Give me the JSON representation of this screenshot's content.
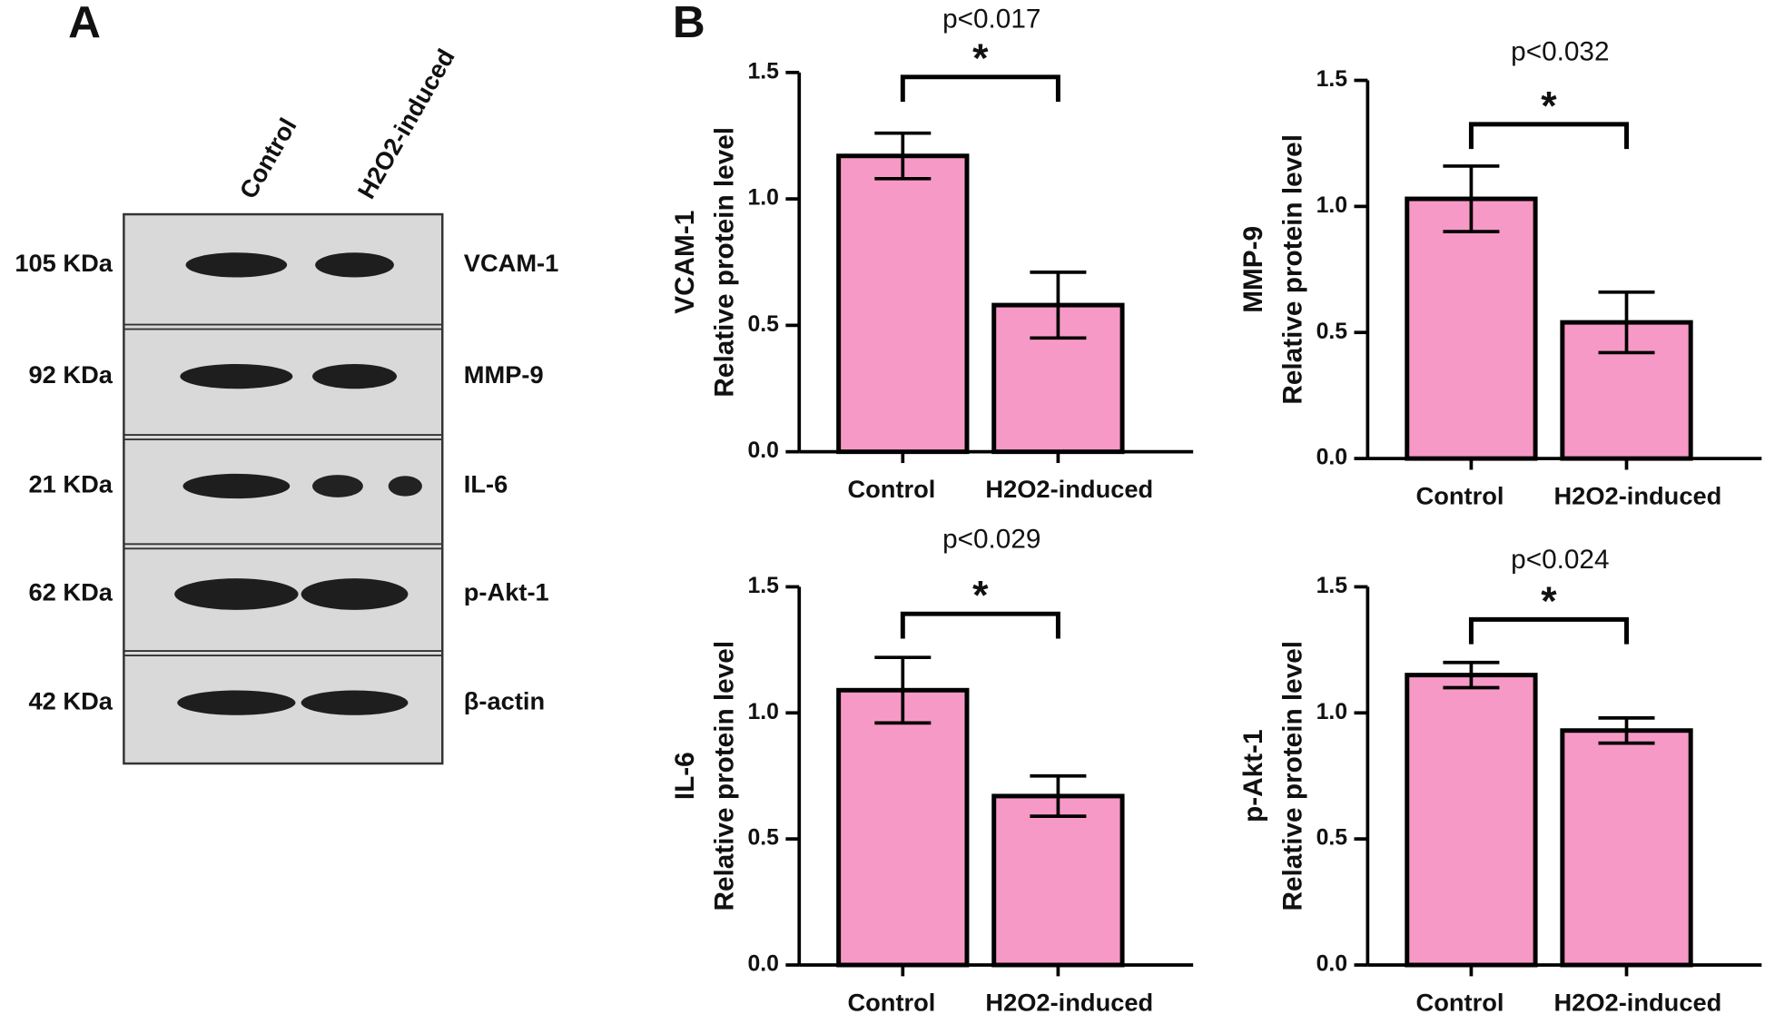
{
  "panels": {
    "a": "A",
    "b": "B"
  },
  "blot": {
    "lanes": [
      "Control",
      "H2O2-induced"
    ],
    "rows": [
      {
        "kda": "105 KDa",
        "protein": "VCAM-1"
      },
      {
        "kda": "92 KDa",
        "protein": "MMP-9"
      },
      {
        "kda": "21 KDa",
        "protein": "IL-6"
      },
      {
        "kda": "62 KDa",
        "protein": "p-Akt-1"
      },
      {
        "kda": "42 KDa",
        "protein": "β-actin"
      }
    ]
  },
  "chart_data": [
    {
      "type": "bar",
      "ylabel": [
        "VCAM-1",
        "Relative protein level"
      ],
      "p_value": "p<0.017",
      "significance": "*",
      "categories": [
        "Control",
        "H2O2-induced"
      ],
      "values": [
        1.17,
        0.58
      ],
      "errors": [
        0.09,
        0.13
      ],
      "color": "#f799c6",
      "ylim": [
        0,
        1.5
      ],
      "yticks": [
        {
          "value": 0,
          "label": "0.0"
        },
        0.5,
        {
          "value": 1,
          "label": "1.0"
        },
        1.5
      ]
    },
    {
      "type": "bar",
      "ylabel": [
        "MMP-9",
        "Relative protein level"
      ],
      "p_value": "p<0.032",
      "significance": "*",
      "categories": [
        "Control",
        "H2O2-induced"
      ],
      "values": [
        1.03,
        0.54
      ],
      "errors": [
        0.13,
        0.12
      ],
      "color": "#f799c6",
      "ylim": [
        0,
        1.5
      ],
      "yticks": [
        {
          "value": 0,
          "label": "0.0"
        },
        0.5,
        {
          "value": 1,
          "label": "1.0"
        },
        1.5
      ]
    },
    {
      "type": "bar",
      "ylabel": [
        "IL-6",
        "Relative protein level"
      ],
      "p_value": "p<0.029",
      "significance": "*",
      "categories": [
        "Control",
        "H2O2-induced"
      ],
      "values": [
        1.09,
        0.67
      ],
      "errors": [
        0.13,
        0.08
      ],
      "color": "#f799c6",
      "ylim": [
        0,
        1.5
      ],
      "yticks": [
        {
          "value": 0,
          "label": "0.0"
        },
        0.5,
        {
          "value": 1,
          "label": "1.0"
        },
        1.5
      ]
    },
    {
      "type": "bar",
      "ylabel": [
        "p-Akt-1",
        "Relative protein level"
      ],
      "p_value": "p<0.024",
      "significance": "*",
      "categories": [
        "Control",
        "H2O2-induced"
      ],
      "values": [
        1.15,
        0.93
      ],
      "errors": [
        0.05,
        0.05
      ],
      "color": "#f799c6",
      "ylim": [
        0,
        1.5
      ],
      "yticks": [
        {
          "value": 0,
          "label": "0.0"
        },
        0.5,
        {
          "value": 1,
          "label": "1.0"
        },
        1.5
      ]
    }
  ]
}
